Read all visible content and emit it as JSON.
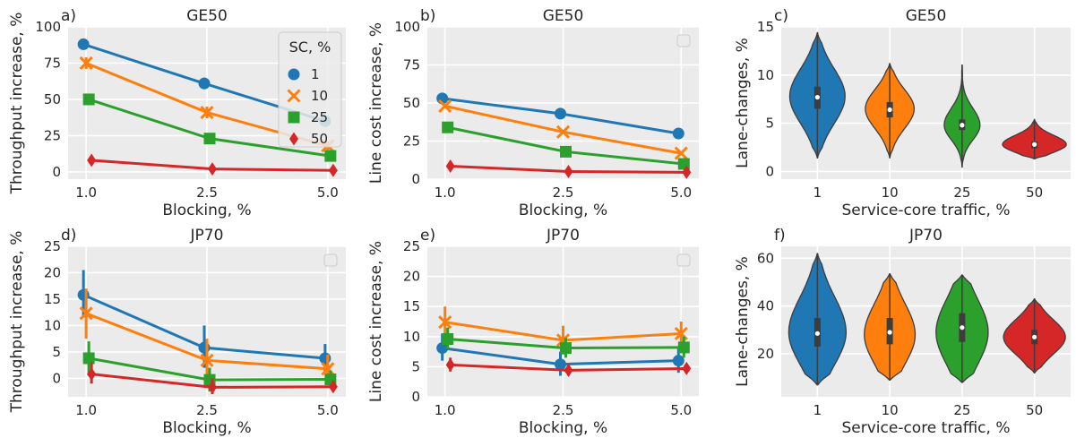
{
  "colors": {
    "1": "#1f77b4",
    "10": "#ff7f0e",
    "25": "#2ca02c",
    "50": "#d62728",
    "panel_bg": "#ebebeb",
    "grid": "#ffffff"
  },
  "legend": {
    "title": "SC, %",
    "entries": [
      "1",
      "10",
      "25",
      "50"
    ]
  },
  "chart_data": [
    {
      "type": "line",
      "panel_label": "a)",
      "title": "GE50",
      "xlabel": "Blocking, %",
      "ylabel": "Throughput increase, %",
      "categories": [
        "1.0",
        "2.5",
        "5.0"
      ],
      "yticks": [
        "0",
        "25",
        "50",
        "75",
        "100"
      ],
      "ylim": [
        -5,
        100
      ],
      "grid": true,
      "legend_position": "upper-right",
      "series": [
        {
          "name": "1",
          "marker": "circle",
          "values": [
            88,
            61,
            35
          ],
          "err": [
            [
              85,
              91
            ],
            [
              57,
              65
            ],
            [
              32,
              38
            ]
          ]
        },
        {
          "name": "10",
          "marker": "x",
          "values": [
            75,
            41,
            18
          ],
          "err": [
            [
              71,
              79
            ],
            [
              37,
              45
            ],
            [
              15,
              21
            ]
          ]
        },
        {
          "name": "25",
          "marker": "square",
          "values": [
            50,
            23,
            11
          ],
          "err": [
            [
              46,
              54
            ],
            [
              20,
              26
            ],
            [
              9,
              13
            ]
          ]
        },
        {
          "name": "50",
          "marker": "diamond",
          "values": [
            8,
            2,
            1
          ],
          "err": [
            [
              7,
              9
            ],
            [
              1,
              3
            ],
            [
              0,
              2
            ]
          ]
        }
      ]
    },
    {
      "type": "line",
      "panel_label": "b)",
      "title": "GE50",
      "xlabel": "Blocking, %",
      "ylabel": "Line cost increase, %",
      "categories": [
        "1.0",
        "2.5",
        "5.0"
      ],
      "yticks": [
        "0",
        "25",
        "50",
        "75",
        "100"
      ],
      "ylim": [
        0,
        100
      ],
      "grid": true,
      "legend_position": "upper-right-empty",
      "series": [
        {
          "name": "1",
          "marker": "circle",
          "values": [
            53,
            43,
            30
          ],
          "err": [
            [
              52,
              54
            ],
            [
              42,
              44
            ],
            [
              29,
              31
            ]
          ]
        },
        {
          "name": "10",
          "marker": "x",
          "values": [
            48,
            31,
            17
          ],
          "err": [
            [
              47,
              49
            ],
            [
              30,
              32
            ],
            [
              16,
              18
            ]
          ]
        },
        {
          "name": "25",
          "marker": "square",
          "values": [
            34,
            18,
            10
          ],
          "err": [
            [
              32,
              36
            ],
            [
              17,
              19
            ],
            [
              9,
              11
            ]
          ]
        },
        {
          "name": "50",
          "marker": "diamond",
          "values": [
            8.5,
            5,
            4.5
          ],
          "err": [
            [
              7.5,
              9.5
            ],
            [
              4,
              6
            ],
            [
              3.5,
              5.5
            ]
          ]
        }
      ]
    },
    {
      "type": "violin",
      "panel_label": "c)",
      "title": "GE50",
      "xlabel": "Service-core traffic, %",
      "ylabel": "Lane-changes, %",
      "categories": [
        "1",
        "10",
        "25",
        "50"
      ],
      "yticks": [
        "0",
        "5",
        "10",
        "15"
      ],
      "ylim": [
        -0.8,
        15
      ],
      "grid": true,
      "violins": [
        {
          "min": 1.4,
          "max": 14.4,
          "q1": 6.5,
          "median": 7.7,
          "q3": 8.8,
          "mode": 7.8,
          "width": 0.85
        },
        {
          "min": 1.4,
          "max": 11.2,
          "q1": 5.6,
          "median": 6.4,
          "q3": 7.2,
          "mode": 6.5,
          "width": 0.75
        },
        {
          "min": 0.4,
          "max": 11.1,
          "q1": 4.3,
          "median": 4.8,
          "q3": 5.4,
          "mode": 4.8,
          "width": 0.55
        },
        {
          "min": 1.3,
          "max": 5.4,
          "q1": 2.4,
          "median": 2.8,
          "q3": 3.1,
          "mode": 2.8,
          "width": 0.98
        }
      ]
    },
    {
      "type": "line",
      "panel_label": "d)",
      "title": "JP70",
      "xlabel": "Blocking, %",
      "ylabel": "Throughput increase, %",
      "categories": [
        "1.0",
        "2.5",
        "5.0"
      ],
      "yticks": [
        "0",
        "5",
        "10",
        "15",
        "20",
        "25"
      ],
      "ylim": [
        -3.5,
        25
      ],
      "grid": true,
      "legend_position": "upper-right-empty",
      "series": [
        {
          "name": "1",
          "marker": "circle",
          "values": [
            15.8,
            5.8,
            3.8
          ],
          "err": [
            [
              11.5,
              20.5
            ],
            [
              2,
              10
            ],
            [
              1,
              6.5
            ]
          ]
        },
        {
          "name": "10",
          "marker": "x",
          "values": [
            12.3,
            3.4,
            1.8
          ],
          "err": [
            [
              7.5,
              17
            ],
            [
              -0.5,
              7.5
            ],
            [
              -0.5,
              4.5
            ]
          ]
        },
        {
          "name": "25",
          "marker": "square",
          "values": [
            3.8,
            -0.3,
            -0.2
          ],
          "err": [
            [
              0.5,
              7
            ],
            [
              -2.5,
              2
            ],
            [
              -1.5,
              1.5
            ]
          ]
        },
        {
          "name": "50",
          "marker": "diamond",
          "values": [
            0.8,
            -1.7,
            -1.6
          ],
          "err": [
            [
              -1,
              3
            ],
            [
              -3,
              0
            ],
            [
              -2.5,
              -0.5
            ]
          ]
        }
      ]
    },
    {
      "type": "line",
      "panel_label": "e)",
      "title": "JP70",
      "xlabel": "Blocking, %",
      "ylabel": "Line cost increase, %",
      "categories": [
        "1.0",
        "2.5",
        "5.0"
      ],
      "yticks": [
        "0",
        "5",
        "10",
        "15",
        "20",
        "25"
      ],
      "ylim": [
        0,
        25
      ],
      "grid": true,
      "legend_position": "upper-right-empty",
      "series": [
        {
          "name": "1",
          "marker": "circle",
          "values": [
            8.1,
            5.4,
            6.0
          ],
          "err": [
            [
              6,
              10.5
            ],
            [
              3.5,
              7.5
            ],
            [
              4,
              8
            ]
          ]
        },
        {
          "name": "10",
          "marker": "x",
          "values": [
            12.4,
            9.4,
            10.5
          ],
          "err": [
            [
              10,
              15
            ],
            [
              7,
              11.8
            ],
            [
              8.5,
              12.5
            ]
          ]
        },
        {
          "name": "25",
          "marker": "square",
          "values": [
            9.6,
            8.1,
            8.2
          ],
          "err": [
            [
              8,
              11.5
            ],
            [
              6.5,
              9.8
            ],
            [
              6.5,
              10
            ]
          ]
        },
        {
          "name": "50",
          "marker": "diamond",
          "values": [
            5.3,
            4.4,
            4.7
          ],
          "err": [
            [
              4.2,
              6.5
            ],
            [
              3.5,
              5.4
            ],
            [
              4,
              5.5
            ]
          ]
        }
      ]
    },
    {
      "type": "violin",
      "panel_label": "f)",
      "title": "JP70",
      "xlabel": "Service-core traffic, %",
      "ylabel": "Lane-changes, %",
      "categories": [
        "1",
        "10",
        "25",
        "50"
      ],
      "yticks": [
        "20",
        "40",
        "60"
      ],
      "ylim": [
        2,
        65
      ],
      "grid": true,
      "violins": [
        {
          "min": 7,
          "max": 62,
          "q1": 23,
          "median": 28.5,
          "q3": 35,
          "mode": 29,
          "width": 0.88
        },
        {
          "min": 9,
          "max": 53.5,
          "q1": 24,
          "median": 29,
          "q3": 35,
          "mode": 28,
          "width": 0.78
        },
        {
          "min": 8,
          "max": 53,
          "q1": 25,
          "median": 31,
          "q3": 37,
          "mode": 29,
          "width": 0.8
        },
        {
          "min": 12,
          "max": 43,
          "q1": 24,
          "median": 27,
          "q3": 30,
          "mode": 27,
          "width": 0.95
        }
      ]
    }
  ]
}
